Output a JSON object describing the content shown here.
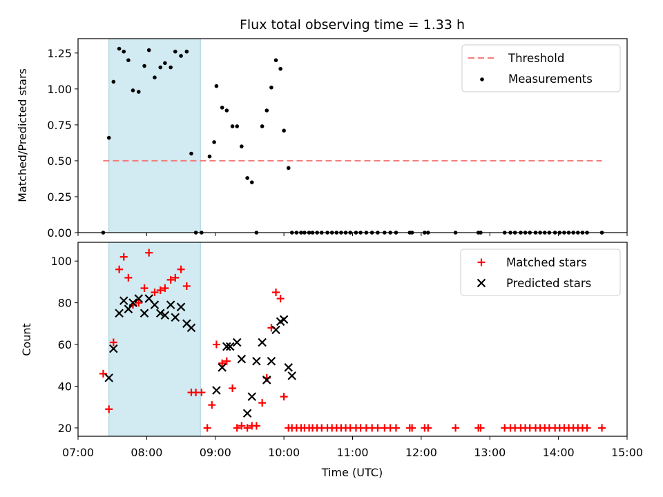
{
  "title": "Flux total observing time = 1.33 h",
  "colors": {
    "threshold": "#f47b7b",
    "measurement": "#000000",
    "matched": "#ff0000",
    "predicted": "#000000",
    "span": "#add8e6"
  },
  "chart_data": [
    {
      "type": "scatter",
      "ylabel": "Matched/Predicted stars",
      "xlim": [
        "07:00",
        "15:00"
      ],
      "ylim": [
        0,
        1.35
      ],
      "yticks": [
        "0.00",
        "0.25",
        "0.50",
        "0.75",
        "1.00",
        "1.25"
      ],
      "xticks": [
        "07:00",
        "08:00",
        "09:00",
        "10:00",
        "11:00",
        "12:00",
        "13:00",
        "14:00",
        "15:00"
      ],
      "shaded_span": [
        "07:27",
        "08:47"
      ],
      "legend": {
        "placement": "top-right",
        "entries": [
          "Threshold",
          "Measurements"
        ]
      },
      "threshold": {
        "name": "Threshold",
        "y": 0.5,
        "x": [
          "07:22",
          "14:38"
        ]
      },
      "series": [
        {
          "name": "Measurements",
          "x": [
            "07:22",
            "07:27",
            "07:31",
            "07:36",
            "07:40",
            "07:44",
            "07:48",
            "07:53",
            "07:58",
            "08:02",
            "08:07",
            "08:12",
            "08:16",
            "08:21",
            "08:25",
            "08:30",
            "08:35",
            "08:39",
            "08:43",
            "08:48",
            "08:55",
            "08:59",
            "09:01",
            "09:06",
            "09:10",
            "09:15",
            "09:19",
            "09:23",
            "09:28",
            "09:32",
            "09:36",
            "09:41",
            "09:45",
            "09:49",
            "09:53",
            "09:57",
            "10:00",
            "10:04",
            "10:07",
            "10:11",
            "10:15",
            "10:18",
            "10:22",
            "10:25",
            "10:29",
            "10:33",
            "10:38",
            "10:42",
            "10:46",
            "10:50",
            "10:54",
            "10:58",
            "11:03",
            "11:07",
            "11:12",
            "11:17",
            "11:22",
            "11:28",
            "11:33",
            "11:38",
            "11:50",
            "11:52",
            "12:03",
            "12:06",
            "12:30",
            "12:50",
            "12:52",
            "13:13",
            "13:18",
            "13:22",
            "13:27",
            "13:31",
            "13:35",
            "13:40",
            "13:44",
            "13:48",
            "13:52",
            "13:57",
            "14:01",
            "14:05",
            "14:09",
            "14:13",
            "14:17",
            "14:21",
            "14:25",
            "14:38"
          ],
          "y": [
            0.0,
            0.66,
            1.05,
            1.28,
            1.26,
            1.2,
            0.99,
            0.98,
            1.16,
            1.27,
            1.08,
            1.15,
            1.18,
            1.15,
            1.26,
            1.23,
            1.26,
            0.55,
            0.0,
            0.0,
            0.53,
            0.63,
            1.02,
            0.87,
            0.85,
            0.74,
            0.74,
            0.6,
            0.38,
            0.35,
            0.0,
            0.74,
            0.85,
            1.01,
            1.2,
            1.14,
            0.71,
            0.45,
            0.0,
            0.0,
            0.0,
            0.0,
            0.0,
            0.0,
            0.0,
            0.0,
            0.0,
            0.0,
            0.0,
            0.0,
            0.0,
            0.0,
            0.0,
            0.0,
            0.0,
            0.0,
            0.0,
            0.0,
            0.0,
            0.0,
            0.0,
            0.0,
            0.0,
            0.0,
            0.0,
            0.0,
            0.0,
            0.0,
            0.0,
            0.0,
            0.0,
            0.0,
            0.0,
            0.0,
            0.0,
            0.0,
            0.0,
            0.0,
            0.0,
            0.0,
            0.0,
            0.0,
            0.0,
            0.0,
            0.0,
            0.0
          ]
        }
      ]
    },
    {
      "type": "scatter",
      "ylabel": "Count",
      "xlabel": "Time (UTC)",
      "xlim": [
        "07:00",
        "15:00"
      ],
      "ylim": [
        16,
        109
      ],
      "yticks": [
        "20",
        "40",
        "60",
        "80",
        "100"
      ],
      "xticks": [
        "07:00",
        "08:00",
        "09:00",
        "10:00",
        "11:00",
        "12:00",
        "13:00",
        "14:00",
        "15:00"
      ],
      "shaded_span": [
        "07:27",
        "08:47"
      ],
      "legend": {
        "placement": "top-right",
        "entries": [
          "Matched stars",
          "Predicted stars"
        ]
      },
      "series": [
        {
          "name": "Matched stars",
          "marker": "plus",
          "x": [
            "07:22",
            "07:27",
            "07:31",
            "07:36",
            "07:40",
            "07:44",
            "07:48",
            "07:53",
            "07:58",
            "08:02",
            "08:07",
            "08:12",
            "08:16",
            "08:21",
            "08:25",
            "08:30",
            "08:35",
            "08:39",
            "08:43",
            "08:48",
            "08:53",
            "08:57",
            "09:01",
            "09:06",
            "09:10",
            "09:15",
            "09:19",
            "09:23",
            "09:28",
            "09:32",
            "09:36",
            "09:41",
            "09:45",
            "09:49",
            "09:53",
            "09:57",
            "10:00",
            "10:04",
            "10:07",
            "10:11",
            "10:15",
            "10:18",
            "10:22",
            "10:25",
            "10:29",
            "10:33",
            "10:38",
            "10:42",
            "10:46",
            "10:50",
            "10:54",
            "10:58",
            "11:03",
            "11:07",
            "11:12",
            "11:17",
            "11:22",
            "11:28",
            "11:33",
            "11:38",
            "11:50",
            "11:52",
            "12:03",
            "12:06",
            "12:30",
            "12:50",
            "12:52",
            "13:13",
            "13:18",
            "13:22",
            "13:27",
            "13:31",
            "13:35",
            "13:40",
            "13:44",
            "13:48",
            "13:52",
            "13:57",
            "14:01",
            "14:05",
            "14:09",
            "14:13",
            "14:17",
            "14:21",
            "14:25",
            "14:38"
          ],
          "y": [
            46,
            29,
            61,
            96,
            102,
            92,
            79,
            80,
            87,
            104,
            85,
            86,
            87,
            91,
            92,
            96,
            88,
            37,
            37,
            37,
            20,
            31,
            60,
            51,
            52,
            39,
            20,
            21,
            20,
            21,
            21,
            32,
            44,
            68,
            85,
            82,
            35,
            20,
            20,
            20,
            20,
            20,
            20,
            20,
            20,
            20,
            20,
            20,
            20,
            20,
            20,
            20,
            20,
            20,
            20,
            20,
            20,
            20,
            20,
            20,
            20,
            20,
            20,
            20,
            20,
            20,
            20,
            20,
            20,
            20,
            20,
            20,
            20,
            20,
            20,
            20,
            20,
            20,
            20,
            20,
            20,
            20,
            20,
            20,
            20,
            20
          ]
        },
        {
          "name": "Predicted stars",
          "marker": "x",
          "x": [
            "07:27",
            "07:31",
            "07:36",
            "07:40",
            "07:44",
            "07:48",
            "07:53",
            "07:58",
            "08:02",
            "08:07",
            "08:12",
            "08:16",
            "08:21",
            "08:25",
            "08:30",
            "08:35",
            "08:39",
            "09:01",
            "09:06",
            "09:10",
            "09:13",
            "09:19",
            "09:23",
            "09:28",
            "09:32",
            "09:36",
            "09:41",
            "09:45",
            "09:49",
            "09:53",
            "09:57",
            "10:00",
            "10:04",
            "10:07"
          ],
          "y": [
            44,
            58,
            75,
            81,
            77,
            80,
            82,
            75,
            82,
            79,
            75,
            74,
            79,
            73,
            78,
            70,
            68,
            38,
            49,
            59,
            59,
            61,
            53,
            27,
            35,
            52,
            61,
            43,
            52,
            67,
            71,
            72,
            49,
            45
          ]
        }
      ]
    }
  ]
}
